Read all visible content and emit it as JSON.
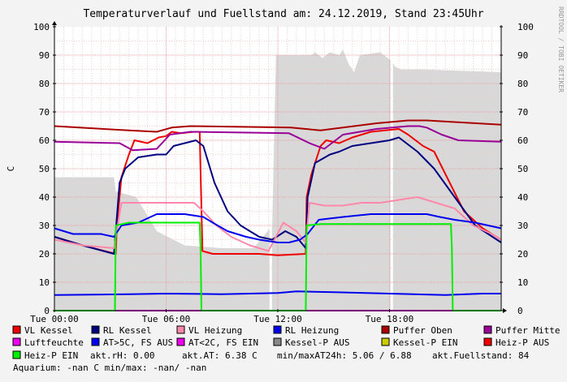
{
  "chart_data": {
    "type": "line",
    "title": "Temperaturverlauf und Fuellstand am: 24.12.2019, Stand 23:45Uhr",
    "watermark": "RRDTOOL / TOBI OETIKER",
    "ylabel": "C",
    "ylim": [
      0,
      100
    ],
    "yticks": [
      "0",
      "10",
      "20",
      "30",
      "40",
      "50",
      "60",
      "70",
      "80",
      "90",
      "100"
    ],
    "xlim": [
      0,
      24
    ],
    "xticks": [
      {
        "x": 0,
        "label": "Tue 00:00"
      },
      {
        "x": 6,
        "label": "Tue 06:00"
      },
      {
        "x": 12,
        "label": "Tue 12:00"
      },
      {
        "x": 18,
        "label": "Tue 18:00"
      }
    ],
    "fill_level": {
      "name": "akt.Fuellstand",
      "color": "#d8d8d8",
      "points": [
        [
          0,
          47
        ],
        [
          3.2,
          47
        ],
        [
          3.3,
          42
        ],
        [
          4.4,
          40
        ],
        [
          5.5,
          28
        ],
        [
          7,
          23
        ],
        [
          9,
          22
        ],
        [
          10.7,
          22
        ],
        [
          11.7,
          30
        ],
        [
          11.9,
          90
        ],
        [
          13.8,
          90
        ],
        [
          14,
          91
        ],
        [
          14.4,
          89
        ],
        [
          14.8,
          91
        ],
        [
          15.3,
          90
        ],
        [
          15.5,
          92
        ],
        [
          15.8,
          87
        ],
        [
          16.1,
          84
        ],
        [
          16.4,
          90
        ],
        [
          17.5,
          91
        ],
        [
          18.1,
          88
        ],
        [
          18.3,
          86
        ],
        [
          18.6,
          85
        ],
        [
          19.6,
          85
        ],
        [
          24,
          84
        ]
      ],
      "gaps": [
        11.6,
        18.1
      ]
    },
    "series": [
      {
        "name": "VL Kessel",
        "color": "#ee0000",
        "width": 2,
        "points": [
          [
            0,
            26
          ],
          [
            1.5,
            23
          ],
          [
            3.3,
            20
          ],
          [
            3.35,
            30
          ],
          [
            3.6,
            47
          ],
          [
            4,
            55
          ],
          [
            4.3,
            60
          ],
          [
            5,
            59
          ],
          [
            5.6,
            61
          ],
          [
            6,
            61.5
          ],
          [
            6.3,
            63
          ],
          [
            6.8,
            62.5
          ],
          [
            7.5,
            63
          ],
          [
            7.8,
            63
          ],
          [
            7.95,
            21
          ],
          [
            8.5,
            20
          ],
          [
            10,
            20
          ],
          [
            11,
            20
          ],
          [
            12,
            19.5
          ],
          [
            13.5,
            20
          ],
          [
            13.55,
            40
          ],
          [
            13.8,
            48
          ],
          [
            14.3,
            58
          ],
          [
            14.6,
            60
          ],
          [
            15.3,
            59
          ],
          [
            16,
            61
          ],
          [
            17,
            63
          ],
          [
            18.5,
            64
          ],
          [
            19,
            62
          ],
          [
            19.8,
            58
          ],
          [
            20.4,
            56
          ],
          [
            22,
            35
          ],
          [
            23,
            29
          ],
          [
            24,
            25
          ]
        ]
      },
      {
        "name": "RL Kessel",
        "color": "#000080",
        "width": 2,
        "points": [
          [
            0,
            26
          ],
          [
            1.5,
            23
          ],
          [
            3.2,
            20
          ],
          [
            3.5,
            45
          ],
          [
            3.8,
            50
          ],
          [
            4.5,
            54
          ],
          [
            5.5,
            55
          ],
          [
            6,
            55
          ],
          [
            6.4,
            58
          ],
          [
            7,
            59
          ],
          [
            7.6,
            60
          ],
          [
            8,
            58
          ],
          [
            8.6,
            45
          ],
          [
            9.3,
            35
          ],
          [
            10,
            30
          ],
          [
            10.5,
            28
          ],
          [
            11,
            26
          ],
          [
            11.7,
            25
          ],
          [
            12.4,
            28
          ],
          [
            13,
            26
          ],
          [
            13.5,
            22
          ],
          [
            13.6,
            40
          ],
          [
            14,
            52
          ],
          [
            14.8,
            55
          ],
          [
            15.3,
            56
          ],
          [
            16,
            58
          ],
          [
            17,
            59
          ],
          [
            18,
            60
          ],
          [
            18.5,
            61
          ],
          [
            19.5,
            56
          ],
          [
            20.4,
            50
          ],
          [
            21.5,
            40
          ],
          [
            22.6,
            30
          ],
          [
            24,
            24
          ]
        ]
      },
      {
        "name": "VL Heizung",
        "color": "#ff88aa",
        "width": 2,
        "points": [
          [
            0,
            25
          ],
          [
            1.5,
            23
          ],
          [
            3.2,
            22
          ],
          [
            3.6,
            38
          ],
          [
            4.4,
            38
          ],
          [
            5.5,
            38
          ],
          [
            6.5,
            38
          ],
          [
            7.5,
            38
          ],
          [
            8,
            35
          ],
          [
            8.7,
            30
          ],
          [
            9.5,
            26
          ],
          [
            10.5,
            23
          ],
          [
            11.5,
            21
          ],
          [
            12.3,
            31
          ],
          [
            13,
            28
          ],
          [
            13.5,
            24
          ],
          [
            13.7,
            38
          ],
          [
            14.5,
            37
          ],
          [
            15.5,
            37
          ],
          [
            16.5,
            38
          ],
          [
            17.5,
            38
          ],
          [
            18.5,
            39
          ],
          [
            19.5,
            40
          ],
          [
            20.5,
            38
          ],
          [
            21.5,
            36
          ],
          [
            22.5,
            30
          ],
          [
            23.5,
            27
          ],
          [
            24,
            25
          ]
        ]
      },
      {
        "name": "RL Heizung",
        "color": "#0000ee",
        "width": 2,
        "points": [
          [
            0,
            29
          ],
          [
            1,
            27
          ],
          [
            2.5,
            27
          ],
          [
            3.2,
            26
          ],
          [
            3.6,
            30
          ],
          [
            4.5,
            31
          ],
          [
            5.5,
            34
          ],
          [
            7,
            34
          ],
          [
            8,
            33
          ],
          [
            8.5,
            31
          ],
          [
            9.3,
            28
          ],
          [
            10.3,
            26
          ],
          [
            11,
            25
          ],
          [
            12,
            24
          ],
          [
            12.6,
            24
          ],
          [
            13.2,
            25
          ],
          [
            13.6,
            27
          ],
          [
            14.2,
            32
          ],
          [
            15.5,
            33
          ],
          [
            17,
            34
          ],
          [
            18.5,
            34
          ],
          [
            20,
            34
          ],
          [
            20.7,
            33
          ],
          [
            21.5,
            32
          ],
          [
            22.6,
            31
          ],
          [
            24,
            29
          ]
        ]
      },
      {
        "name": "Puffer Oben",
        "color": "#aa0000",
        "width": 2,
        "points": [
          [
            0,
            65
          ],
          [
            4,
            63.5
          ],
          [
            5.5,
            63
          ],
          [
            6.3,
            64.5
          ],
          [
            7.3,
            65
          ],
          [
            12.7,
            64.5
          ],
          [
            13.5,
            64
          ],
          [
            14.3,
            63.5
          ],
          [
            15.5,
            64.5
          ],
          [
            17.3,
            66
          ],
          [
            19,
            67
          ],
          [
            20,
            67
          ],
          [
            24,
            65.5
          ]
        ]
      },
      {
        "name": "Puffer Mitte",
        "color": "#990099",
        "width": 2,
        "points": [
          [
            0,
            59.5
          ],
          [
            3.5,
            59
          ],
          [
            4.2,
            56.5
          ],
          [
            5.5,
            57
          ],
          [
            6.2,
            62
          ],
          [
            7.3,
            63
          ],
          [
            12.6,
            62.5
          ],
          [
            13.7,
            59
          ],
          [
            14.5,
            57
          ],
          [
            15.5,
            62
          ],
          [
            17.3,
            64
          ],
          [
            19,
            65
          ],
          [
            19.6,
            65
          ],
          [
            20,
            64.5
          ],
          [
            20.8,
            62
          ],
          [
            21.7,
            60
          ],
          [
            24,
            59.5
          ]
        ]
      },
      {
        "name": "Luftfeuchte",
        "color": "#ee00ee",
        "width": 2,
        "points": [
          [
            0,
            0
          ],
          [
            24,
            0
          ]
        ]
      },
      {
        "name": "AT>5C, FS AUS",
        "color": "#0000ee",
        "width": 2,
        "points": [
          [
            0,
            5.5
          ],
          [
            4,
            5.8
          ],
          [
            6,
            6
          ],
          [
            9,
            5.8
          ],
          [
            12,
            6.2
          ],
          [
            13,
            6.8
          ],
          [
            15,
            6.5
          ],
          [
            18,
            6
          ],
          [
            21,
            5.5
          ],
          [
            23,
            6
          ],
          [
            24,
            6
          ]
        ]
      },
      {
        "name": "Heiz-P EIN",
        "color": "#00ee00",
        "width": 2,
        "points": [
          [
            0,
            0
          ],
          [
            3.25,
            0
          ],
          [
            3.3,
            30
          ],
          [
            4,
            31
          ],
          [
            7.8,
            31
          ],
          [
            7.85,
            22
          ],
          [
            7.9,
            0
          ],
          [
            13.5,
            0
          ],
          [
            13.55,
            30
          ],
          [
            14.3,
            30.5
          ],
          [
            21.3,
            30.5
          ],
          [
            21.35,
            22
          ],
          [
            21.4,
            0
          ],
          [
            24,
            0
          ]
        ]
      }
    ],
    "legend": [
      {
        "label": "VL Kessel",
        "color": "#ee0000"
      },
      {
        "label": "RL Kessel",
        "color": "#000080"
      },
      {
        "label": "VL Heizung",
        "color": "#ff88aa"
      },
      {
        "label": "RL Heizung",
        "color": "#0000ee"
      },
      {
        "label": "Puffer Oben",
        "color": "#aa0000"
      },
      {
        "label": "Puffer Mitte",
        "color": "#990099"
      },
      {
        "label": "Luftfeuchte",
        "color": "#ee00ee"
      },
      {
        "label": "AT>5C, FS AUS",
        "color": "#0000ee"
      },
      {
        "label": "AT<2C, FS EIN",
        "color": "#ee00ee"
      },
      {
        "label": "Kessel-P AUS",
        "color": "#888888"
      },
      {
        "label": "Kessel-P EIN",
        "color": "#cccc00"
      },
      {
        "label": "Heiz-P AUS",
        "color": "#ee0000"
      },
      {
        "label": "Heiz-P EIN",
        "color": "#00ee00"
      }
    ],
    "status": {
      "rh": "akt.rH: 0.00",
      "at": "akt.AT: 6.38 C",
      "minmax": "min/maxAT24h: 5.06 / 6.88",
      "fuellstand": "akt.Fuellstand:   84",
      "aquarium": "Aquarium: -nan C  min/max: -nan/ -nan"
    }
  }
}
